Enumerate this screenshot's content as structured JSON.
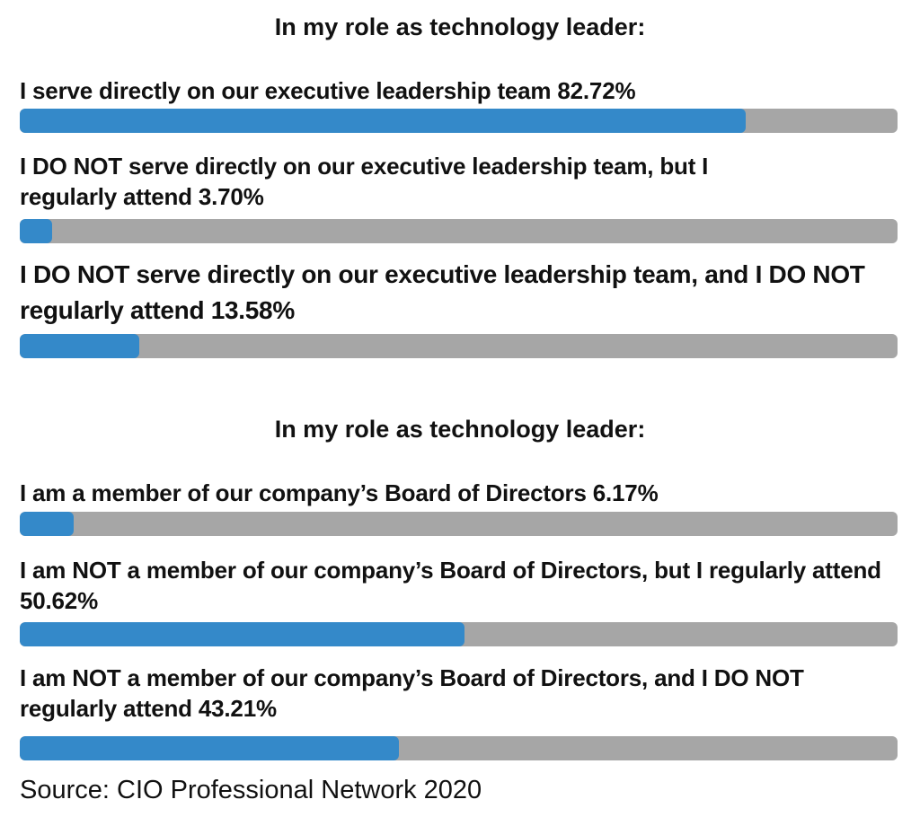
{
  "chart_data": [
    {
      "type": "bar",
      "orientation": "horizontal",
      "title": "In my role as technology leader:",
      "ylim": [
        0,
        100
      ],
      "categories": [
        "I serve directly on our executive leadership team",
        "I DO NOT serve directly on our executive leadership team, but I regularly attend",
        "I DO NOT serve directly on our executive leadership team, and I DO NOT regularly attend"
      ],
      "values": [
        82.72,
        3.7,
        13.58
      ],
      "value_labels": [
        "82.72%",
        "3.70%",
        "13.58%"
      ],
      "colors": {
        "fill": "#3489c9",
        "track": "#a6a6a6"
      }
    },
    {
      "type": "bar",
      "orientation": "horizontal",
      "title": "In my role as technology leader:",
      "ylim": [
        0,
        100
      ],
      "categories": [
        "I am a member of our company’s Board of Directors",
        "I am NOT a member of our company’s Board of Directors, but I regularly attend",
        "I am NOT a member of our company’s Board of Directors, and I DO NOT regularly attend"
      ],
      "values": [
        6.17,
        50.62,
        43.21
      ],
      "value_labels": [
        "6.17%",
        "50.62%",
        "43.21%"
      ],
      "colors": {
        "fill": "#3489c9",
        "track": "#a6a6a6"
      }
    }
  ],
  "source": "Source: CIO Professional Network 2020"
}
